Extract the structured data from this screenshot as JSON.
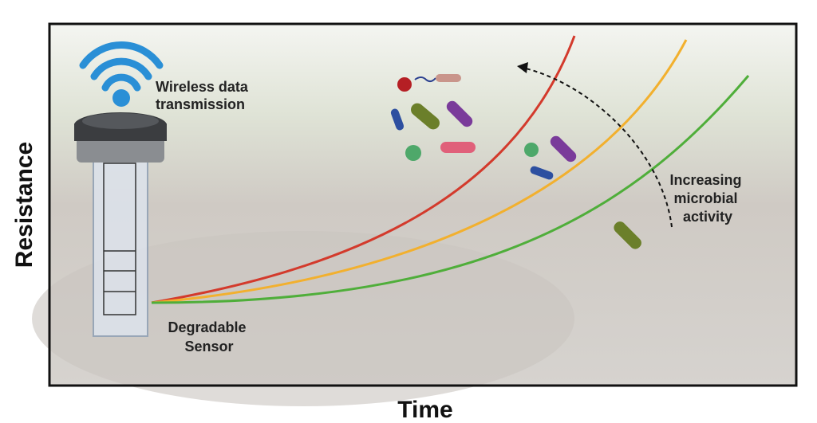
{
  "axes": {
    "y_label": "Resistance",
    "x_label": "Time"
  },
  "labels": {
    "wireless": [
      "Wireless data",
      "transmission"
    ],
    "sensor": [
      "Degradable",
      "Sensor"
    ],
    "microbial": [
      "Increasing",
      "microbial",
      "activity"
    ]
  }
}
